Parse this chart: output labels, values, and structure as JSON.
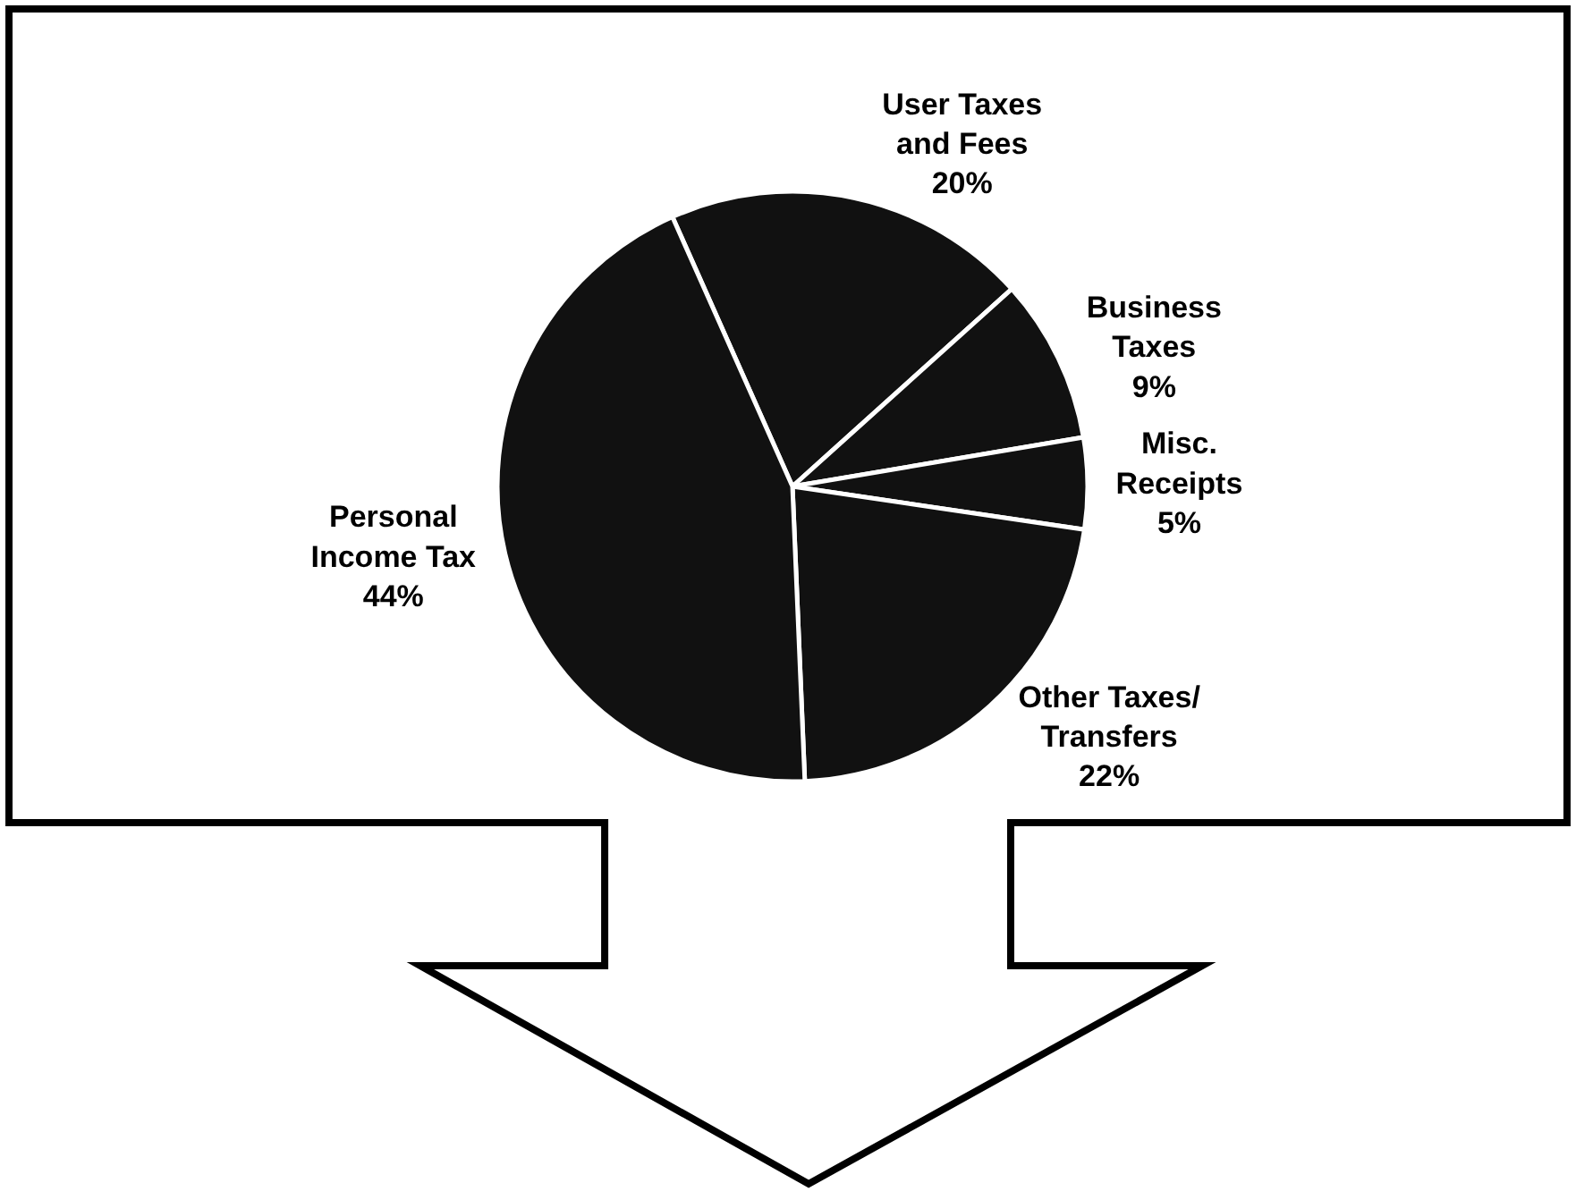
{
  "chart_data": {
    "type": "pie",
    "categories": [
      "User Taxes and Fees",
      "Business Taxes",
      "Misc. Receipts",
      "Other Taxes/ Transfers",
      "Personal Income Tax"
    ],
    "values": [
      20,
      9,
      5,
      22,
      44
    ],
    "value_labels": [
      "20%",
      "9%",
      "5%",
      "22%",
      "44%"
    ],
    "colors": [
      "#111111",
      "#111111",
      "#111111",
      "#111111",
      "#111111"
    ],
    "legend": false
  }
}
